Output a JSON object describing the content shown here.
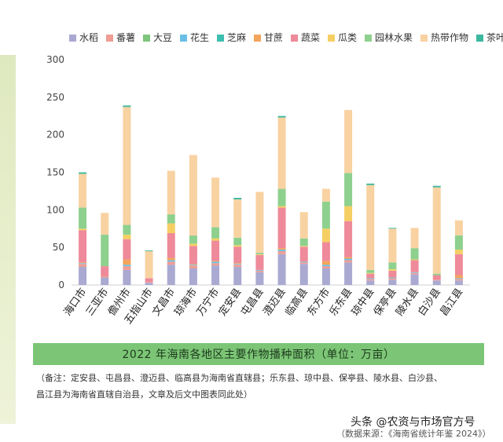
{
  "chart_data": {
    "type": "bar",
    "stacked": true,
    "categories": [
      "海口市",
      "三亚市",
      "儋州市",
      "五指山市",
      "文昌市",
      "琼海市",
      "万宁市",
      "定安县",
      "屯昌县",
      "澄迈县",
      "临高县",
      "东方市",
      "乐东县",
      "琼中县",
      "保亭县",
      "陵水县",
      "白沙县",
      "昌江县"
    ],
    "series": [
      {
        "name": "水稻",
        "color": "#a9a9d1",
        "values": [
          24,
          10,
          20,
          3,
          27,
          22,
          26,
          24,
          17,
          41,
          28,
          22,
          30,
          6,
          7,
          14,
          6,
          6
        ]
      },
      {
        "name": "番薯",
        "color": "#ef9d94",
        "values": [
          4,
          2,
          5,
          1,
          4,
          4,
          3,
          3,
          2,
          4,
          2,
          3,
          3,
          2,
          2,
          2,
          1,
          2
        ]
      },
      {
        "name": "大豆",
        "color": "#7dc67b",
        "values": [
          0,
          0,
          0,
          0,
          0,
          0,
          0,
          0,
          0,
          0,
          0,
          0,
          0,
          0,
          0,
          0,
          0,
          0
        ]
      },
      {
        "name": "花生",
        "color": "#6bbfe6",
        "values": [
          1,
          0,
          2,
          0,
          2,
          1,
          2,
          1,
          1,
          2,
          1,
          2,
          2,
          1,
          1,
          1,
          0,
          1
        ]
      },
      {
        "name": "芝麻",
        "color": "#3dbfb0",
        "values": [
          0,
          0,
          0,
          0,
          0,
          0,
          0,
          0,
          0,
          0,
          0,
          0,
          0,
          0,
          0,
          0,
          0,
          0
        ]
      },
      {
        "name": "甘蔗",
        "color": "#f3a55c",
        "values": [
          1,
          0,
          7,
          0,
          3,
          1,
          1,
          1,
          0,
          2,
          0,
          5,
          2,
          0,
          0,
          0,
          0,
          4
        ]
      },
      {
        "name": "蔬菜",
        "color": "#ee8a9a",
        "values": [
          43,
          13,
          27,
          5,
          33,
          24,
          27,
          22,
          20,
          54,
          20,
          25,
          48,
          6,
          9,
          16,
          6,
          28
        ]
      },
      {
        "name": "瓜类",
        "color": "#f5cf64",
        "values": [
          2,
          0,
          6,
          0,
          13,
          3,
          3,
          2,
          1,
          2,
          1,
          18,
          20,
          1,
          2,
          1,
          0,
          6
        ]
      },
      {
        "name": "园林水果",
        "color": "#8ed08e",
        "values": [
          28,
          42,
          13,
          0,
          12,
          11,
          15,
          10,
          2,
          23,
          10,
          36,
          44,
          4,
          9,
          15,
          2,
          19
        ]
      },
      {
        "name": "热带作物",
        "color": "#f9d2a2",
        "values": [
          45,
          29,
          157,
          36,
          58,
          107,
          66,
          51,
          81,
          95,
          35,
          17,
          84,
          113,
          45,
          27,
          115,
          20
        ]
      },
      {
        "name": "茶叶",
        "color": "#3cb89f",
        "values": [
          2,
          0,
          2,
          1,
          0,
          0,
          0,
          2,
          0,
          2,
          0,
          0,
          0,
          2,
          1,
          0,
          2,
          0
        ]
      }
    ],
    "ylim": [
      0,
      300
    ],
    "yticks": [
      0,
      50,
      100,
      150,
      200,
      250,
      300
    ],
    "grid": false,
    "legend": "top",
    "title": "2022 年海南各地区主要作物播种面积（单位：万亩）"
  },
  "note": {
    "line1": "（备注：定安县、屯昌县、澄迈县、临高县为海南省直辖县；乐东县、琼中县、保亭县、陵水县、白沙县、",
    "line2": "昌江县为海南省直辖自治县，文章及后文中图表同此处）"
  },
  "watermark": "头条 @农资与市场官方号",
  "source": "（数据来源：《海南省统计年鉴 2024》）"
}
